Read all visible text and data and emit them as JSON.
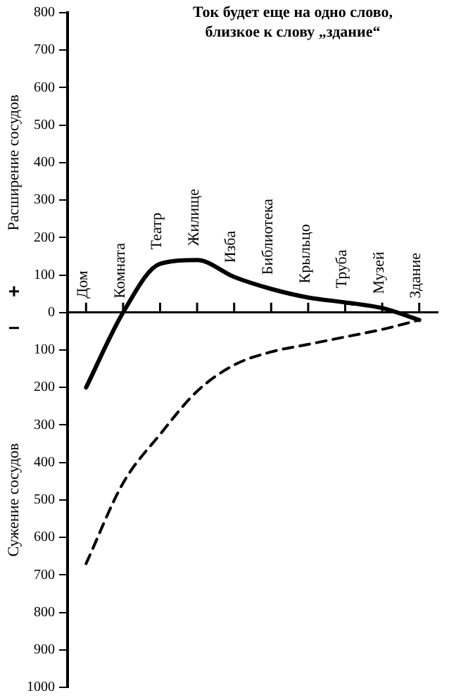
{
  "chart_data": {
    "type": "line",
    "title": "Ток будет еще на одно слово, близкое к слову „здание“",
    "ylabel": "Расширение сосудов",
    "annotations": [
      "+",
      "−",
      "Сужение сосудов"
    ],
    "categories": [
      "Дом",
      "Комната",
      "Театр",
      "Жилище",
      "Изба",
      "Библиотека",
      "Крыльцо",
      "Труба",
      "Музей",
      "Здание"
    ],
    "series": [
      {
        "color": "#000000",
        "line_style": "solid",
        "values": [
          -200,
          0,
          130,
          140,
          95,
          63,
          40,
          27,
          12,
          -20
        ]
      },
      {
        "color": "#000000",
        "line_style": "dashed",
        "values": [
          -670,
          -455,
          -325,
          -210,
          -140,
          -105,
          -85,
          -65,
          -45,
          -20
        ]
      }
    ],
    "ylim": [
      -1000,
      800
    ],
    "yticks": [
      {
        "value": -1000,
        "label": "1000"
      },
      {
        "value": -900,
        "label": "900"
      },
      {
        "value": -800,
        "label": "800"
      },
      {
        "value": -700,
        "label": "700"
      },
      {
        "value": -600,
        "label": "600"
      },
      {
        "value": -500,
        "label": "500"
      },
      {
        "value": -400,
        "label": "400"
      },
      {
        "value": -300,
        "label": "300"
      },
      {
        "value": -200,
        "label": "200"
      },
      {
        "value": -100,
        "label": "100"
      },
      0,
      100,
      200,
      300,
      400,
      500,
      600,
      700,
      800
    ],
    "grid": false,
    "legend": false,
    "marker": "none"
  }
}
